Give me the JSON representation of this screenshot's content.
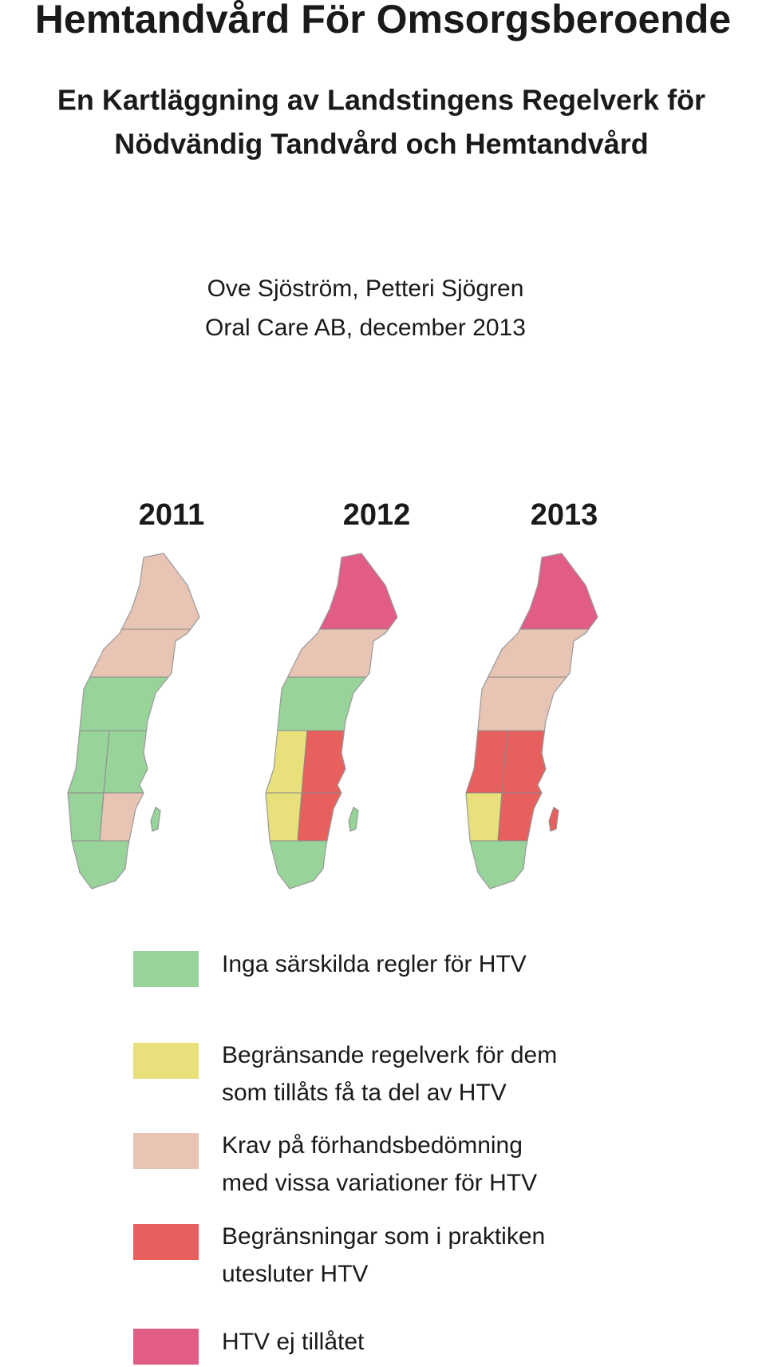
{
  "title": "Hemtandvård För Omsorgsberoende",
  "subtitle": [
    "En Kartläggning av Landstingens Regelverk för",
    "Nödvändig Tandvård och Hemtandvård"
  ],
  "authors": [
    "Ove Sjöström, Petteri Sjögren",
    "Oral Care AB, december 2013"
  ],
  "years": [
    "2011",
    "2012",
    "2013"
  ],
  "legend": [
    {
      "color": "#98d39a",
      "lines": [
        "Inga särskilda regler för HTV"
      ]
    },
    {
      "color": "#e8e07a",
      "lines": [
        "Begränsande regelverk för dem",
        "som tillåts få ta del av HTV"
      ]
    },
    {
      "color": "#e8c4b4",
      "lines": [
        "Krav på förhandsbedömning",
        "med vissa variationer för HTV"
      ]
    },
    {
      "color": "#e8605e",
      "lines": [
        "Begränsningar som i praktiken",
        "utesluter HTV"
      ]
    },
    {
      "color": "#e25d86",
      "lines": [
        "HTV ej tillåtet"
      ]
    }
  ]
}
